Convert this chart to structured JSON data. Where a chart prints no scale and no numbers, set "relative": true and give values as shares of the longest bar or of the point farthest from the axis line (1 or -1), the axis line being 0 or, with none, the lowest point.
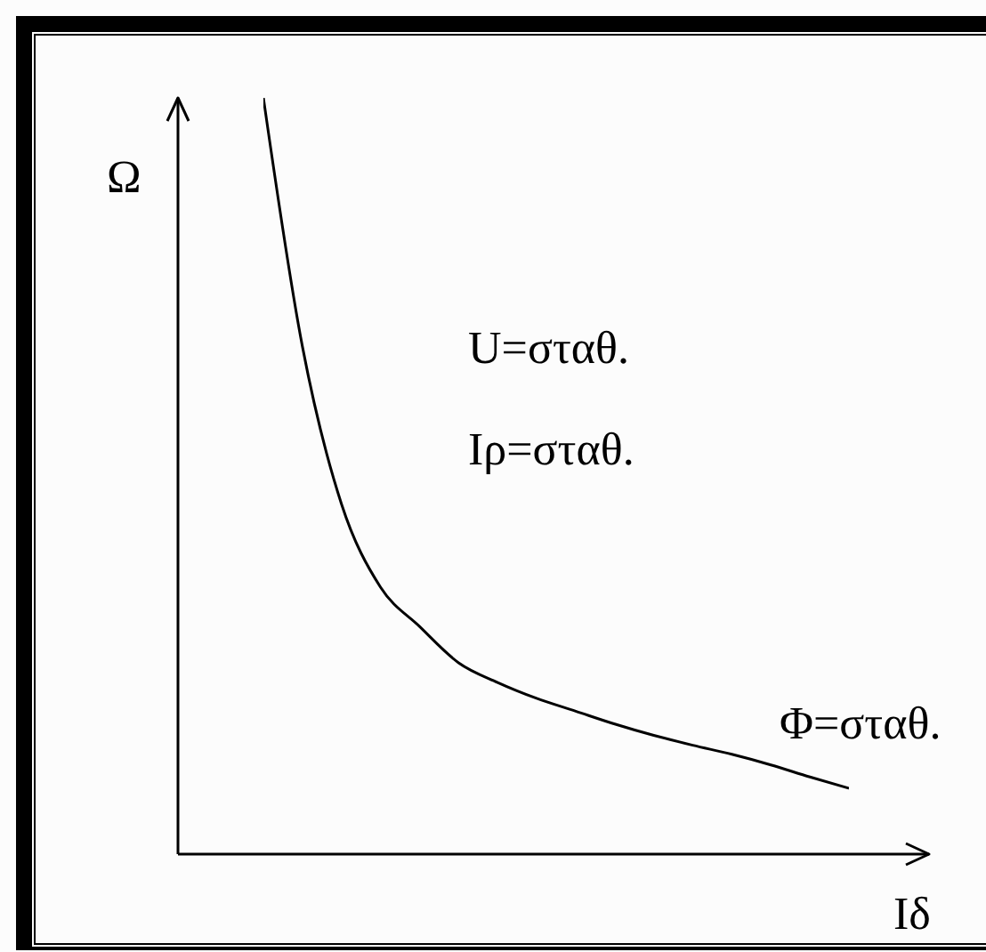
{
  "chart_data": {
    "type": "line",
    "xlabel": "Iδ",
    "ylabel": "Ω",
    "annotations": [
      "U=σταθ.",
      "Iρ=σταθ.",
      "Φ=σταθ."
    ],
    "categories": [
      null,
      null,
      null,
      null,
      null,
      null,
      null,
      null,
      null,
      null,
      null,
      null,
      null,
      null,
      null,
      null
    ],
    "values": [
      1.0,
      0.671,
      0.463,
      0.353,
      0.301,
      0.253,
      0.227,
      0.206,
      0.189,
      0.172,
      0.157,
      0.144,
      0.132,
      0.118,
      0.102,
      0.087
    ],
    "color": "#000000",
    "relative": true
  }
}
